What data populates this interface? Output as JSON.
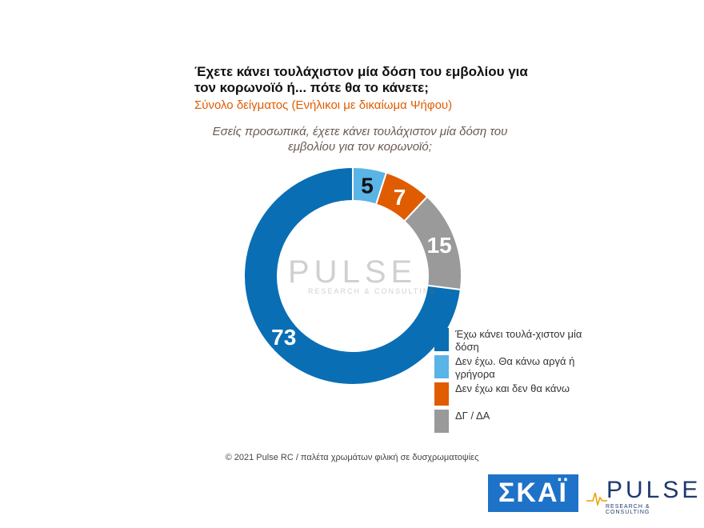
{
  "title": "Έχετε κάνει τουλάχιστον μία δόση του εμβολίου για τον κορωνοϊό ή... πότε θα το κάνετε;",
  "subtitle": "Σύνολο δείγματος (Ενήλικοι με δικαίωμα Ψήφου)",
  "question": "Εσείς προσωπικά, έχετε κάνει τουλάχιστον μία δόση του εμβολίου για τον κορωνοϊό;",
  "watermark": {
    "word": "PULSE",
    "sub": "RESEARCH & CONSULTING"
  },
  "chart_data": {
    "type": "pie",
    "variant": "donut",
    "categories": [
      "Έχω κάνει τουλά-χιστον μία δόση",
      "Δεν έχω. Θα κάνω αργά ή γρήγορα",
      "Δεν έχω και δεν θα κάνω",
      "ΔΓ / ΔΑ"
    ],
    "values": [
      73,
      5,
      7,
      15
    ],
    "colors": [
      "#0a6eb4",
      "#5ab4e6",
      "#e05c00",
      "#9a9a9a"
    ],
    "label_colors": [
      "#ffffff",
      "#111111",
      "#ffffff",
      "#ffffff"
    ],
    "legend_position": "bottom-right"
  },
  "legend": [
    {
      "label": "Έχω κάνει τουλά-χιστον μία δόση",
      "color": "#0a6eb4"
    },
    {
      "label": "Δεν έχω. Θα κάνω αργά ή γρήγορα",
      "color": "#5ab4e6"
    },
    {
      "label": "Δεν έχω και δεν θα κάνω",
      "color": "#e05c00"
    },
    {
      "label": "ΔΓ / ΔΑ",
      "color": "#9a9a9a"
    }
  ],
  "footer": "© 2021 Pulse RC  /  παλέτα χρωμάτων φιλική σε δυσχρωματοψίες",
  "logos": {
    "skai": "ΣΚΑΪ",
    "pulse": "PULSE",
    "pulse_sub": "RESEARCH & CONSULTING"
  }
}
